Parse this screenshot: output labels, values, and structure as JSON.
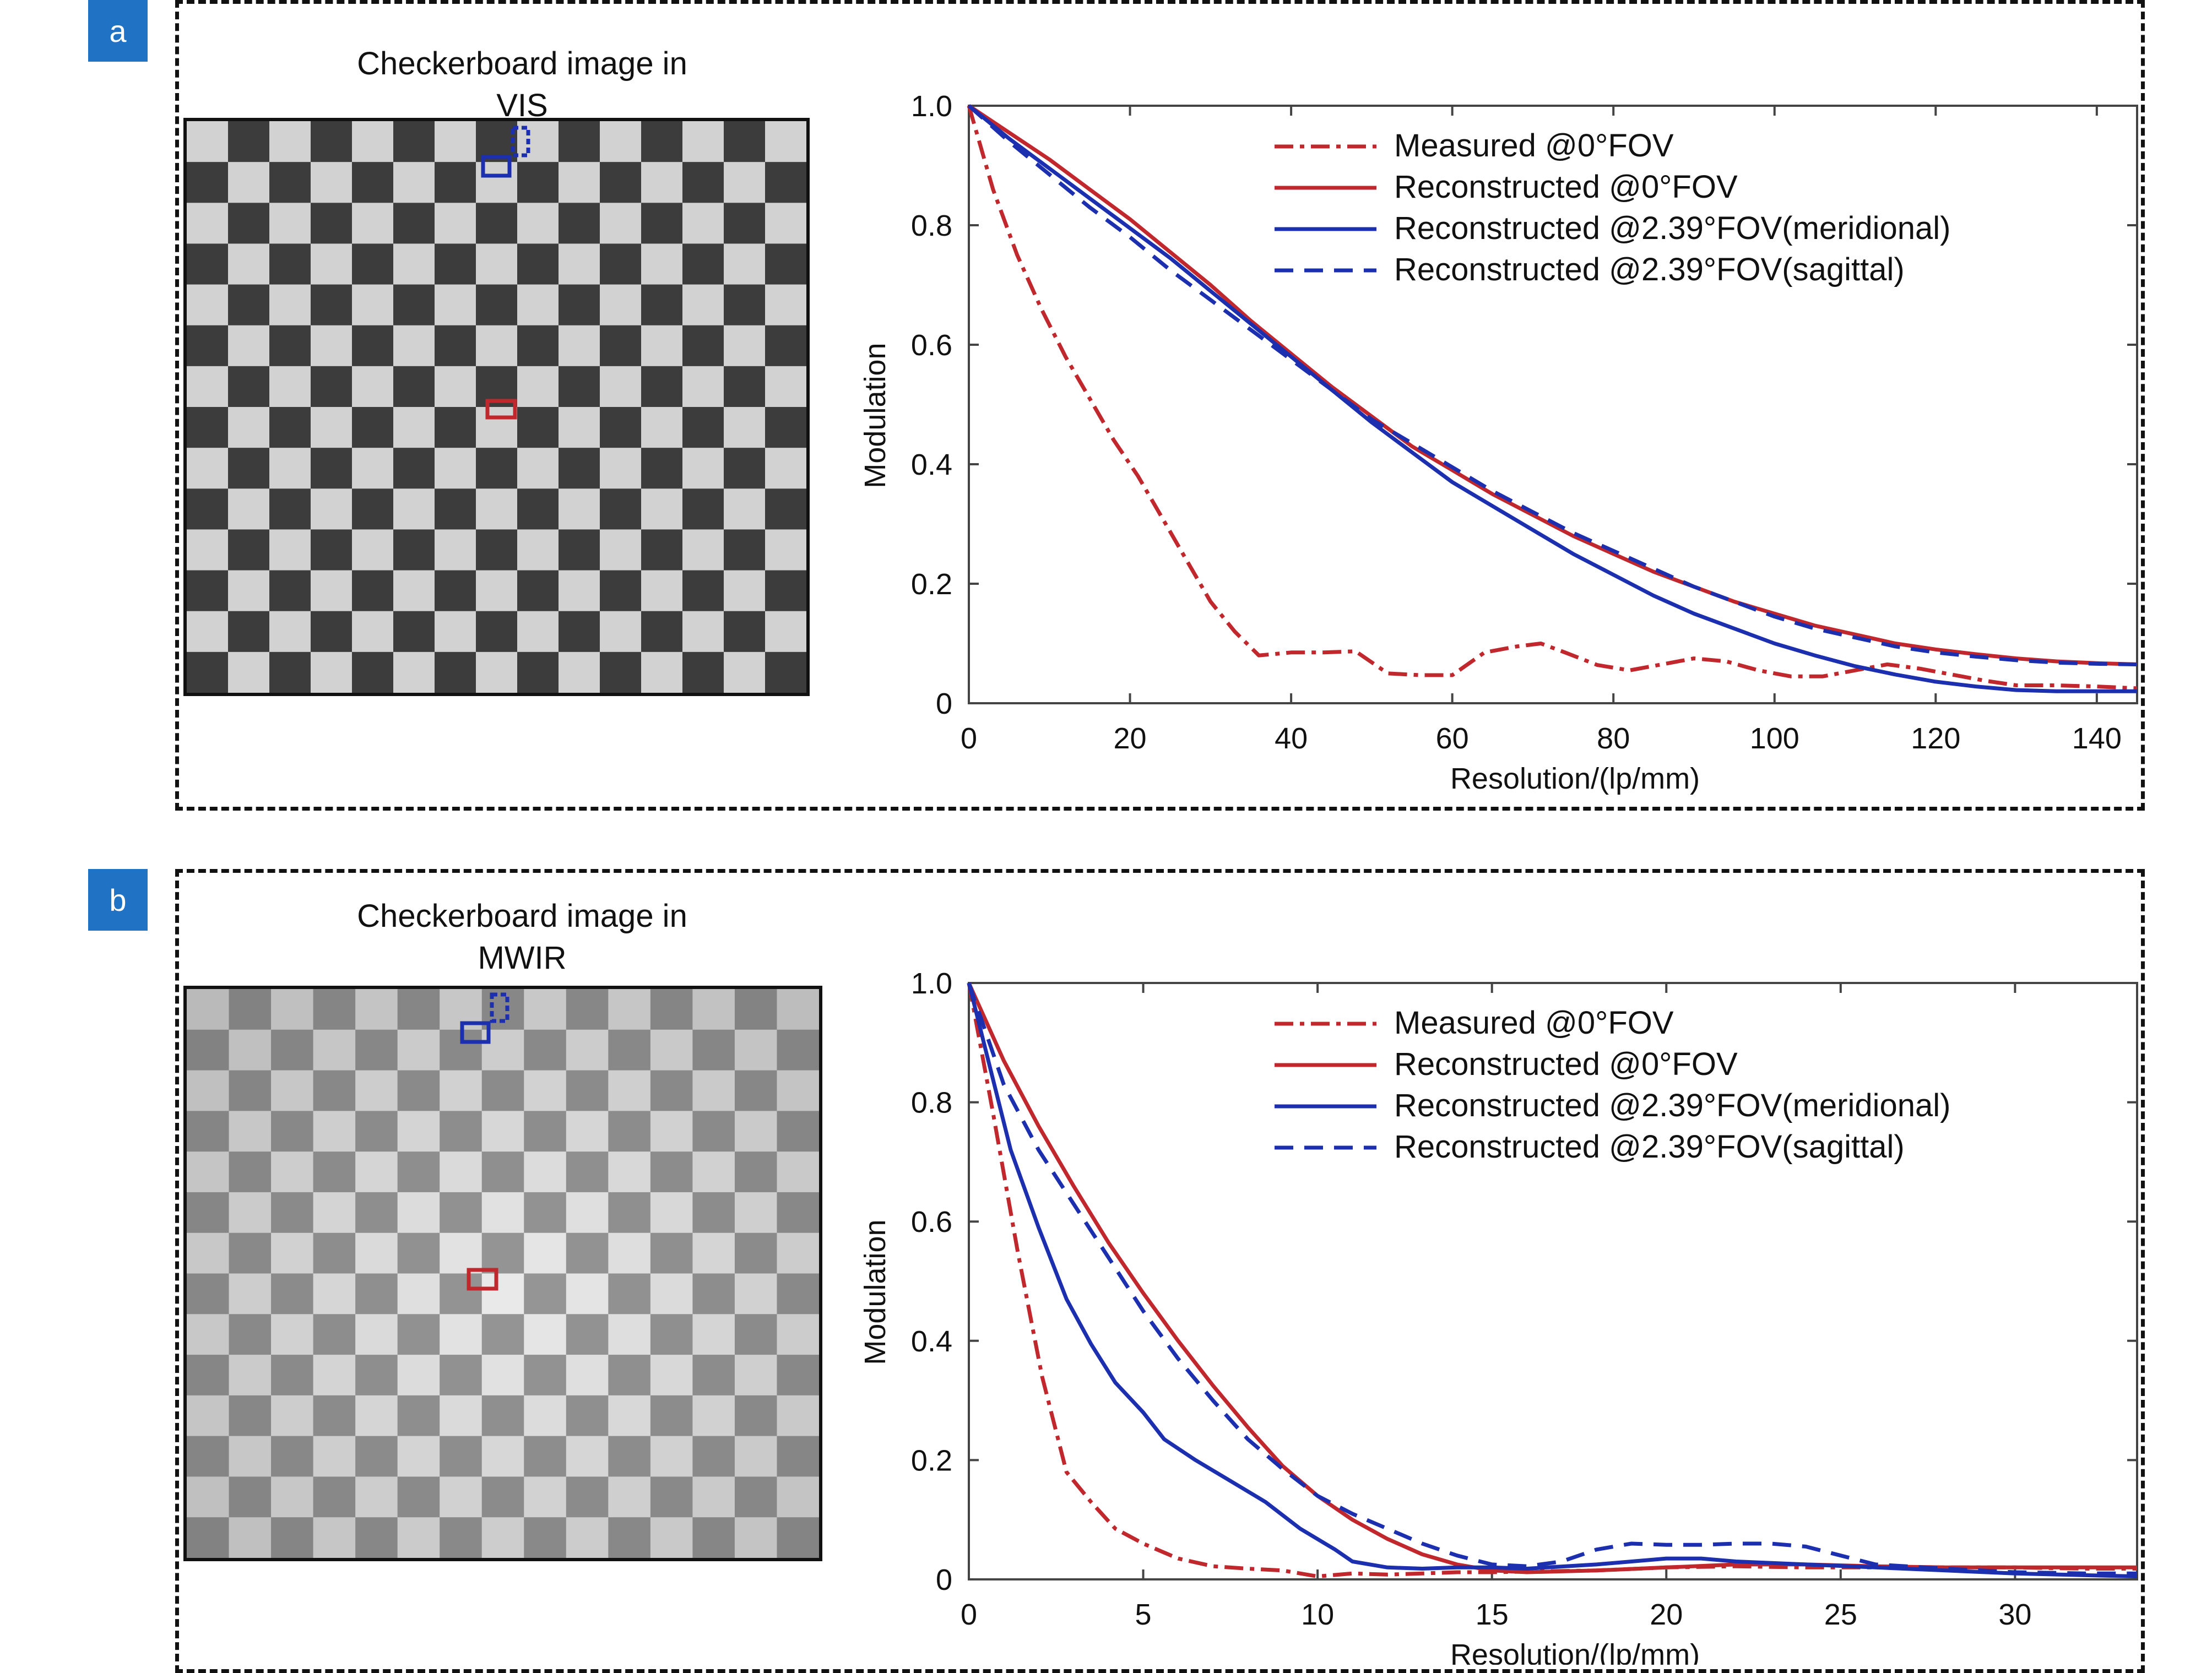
{
  "panels": [
    {
      "label": "a",
      "image_title_line1": "Checkerboard image in",
      "image_title_line2": "VIS",
      "image_style": "vis",
      "chart_data": {
        "type": "line",
        "xlabel": "Resolution/(lp/mm)",
        "ylabel": "Modulation",
        "xlim": [
          0,
          145
        ],
        "ylim": [
          0,
          1.0
        ],
        "xticks": [
          0,
          20,
          40,
          60,
          80,
          100,
          120,
          140
        ],
        "yticks": [
          0,
          0.2,
          0.4,
          0.6,
          0.8,
          1.0
        ],
        "ytick_labels": [
          "0",
          "0.2",
          "0.4",
          "0.6",
          "0.8",
          "1.0"
        ],
        "legend_position": "top-right",
        "series": [
          {
            "name": "Measured @0°FOV",
            "color": "#c0282d",
            "dash": "dashdot",
            "x": [
              0,
              3,
              6,
              9,
              12,
              15,
              18,
              21,
              24,
              27,
              30,
              33,
              36,
              40,
              44,
              48,
              52,
              56,
              60,
              64,
              68,
              71,
              74,
              78,
              82,
              86,
              90,
              94,
              98,
              102,
              106,
              110,
              114,
              118,
              122,
              126,
              130,
              135,
              140,
              145
            ],
            "y": [
              1.0,
              0.86,
              0.75,
              0.66,
              0.58,
              0.51,
              0.44,
              0.38,
              0.31,
              0.24,
              0.17,
              0.12,
              0.08,
              0.085,
              0.085,
              0.087,
              0.05,
              0.047,
              0.047,
              0.085,
              0.095,
              0.1,
              0.085,
              0.064,
              0.055,
              0.065,
              0.075,
              0.07,
              0.055,
              0.045,
              0.045,
              0.055,
              0.065,
              0.058,
              0.048,
              0.038,
              0.03,
              0.03,
              0.028,
              0.025
            ]
          },
          {
            "name": "Reconstructed @0°FOV",
            "color": "#c0282d",
            "dash": "solid",
            "x": [
              0,
              5,
              10,
              15,
              20,
              25,
              30,
              35,
              40,
              45,
              50,
              55,
              60,
              65,
              70,
              75,
              80,
              85,
              90,
              95,
              100,
              105,
              110,
              115,
              120,
              125,
              130,
              135,
              140,
              145
            ],
            "y": [
              1.0,
              0.955,
              0.91,
              0.86,
              0.81,
              0.755,
              0.7,
              0.64,
              0.585,
              0.53,
              0.48,
              0.43,
              0.39,
              0.35,
              0.315,
              0.28,
              0.25,
              0.22,
              0.195,
              0.17,
              0.15,
              0.13,
              0.115,
              0.1,
              0.09,
              0.082,
              0.075,
              0.07,
              0.067,
              0.065
            ]
          },
          {
            "name": "Reconstructed @2.39°FOV(meridional)",
            "color": "#1c2fae",
            "dash": "solid",
            "x": [
              0,
              5,
              10,
              15,
              20,
              25,
              30,
              35,
              40,
              45,
              50,
              55,
              60,
              65,
              70,
              75,
              80,
              85,
              90,
              95,
              100,
              105,
              110,
              115,
              120,
              125,
              130,
              135,
              140,
              145
            ],
            "y": [
              1.0,
              0.945,
              0.895,
              0.845,
              0.795,
              0.745,
              0.69,
              0.635,
              0.58,
              0.525,
              0.47,
              0.42,
              0.37,
              0.33,
              0.29,
              0.25,
              0.215,
              0.18,
              0.15,
              0.125,
              0.1,
              0.08,
              0.062,
              0.048,
              0.036,
              0.028,
              0.022,
              0.02,
              0.02,
              0.02
            ]
          },
          {
            "name": "Reconstructed @2.39°FOV(sagittal)",
            "color": "#1c2fae",
            "dash": "dashed",
            "x": [
              0,
              5,
              10,
              15,
              20,
              25,
              30,
              35,
              40,
              45,
              50,
              55,
              60,
              65,
              70,
              75,
              80,
              85,
              90,
              95,
              100,
              105,
              110,
              115,
              120,
              125,
              130,
              135,
              140,
              145
            ],
            "y": [
              1.0,
              0.94,
              0.885,
              0.83,
              0.78,
              0.725,
              0.675,
              0.625,
              0.575,
              0.525,
              0.475,
              0.435,
              0.395,
              0.355,
              0.32,
              0.285,
              0.255,
              0.225,
              0.195,
              0.17,
              0.145,
              0.125,
              0.11,
              0.095,
              0.085,
              0.078,
              0.072,
              0.068,
              0.066,
              0.065
            ]
          }
        ]
      }
    },
    {
      "label": "b",
      "image_title_line1": "Checkerboard image in",
      "image_title_line2": "MWIR",
      "image_style": "mwir",
      "chart_data": {
        "type": "line",
        "xlabel": "Resolution/(lp/mm)",
        "ylabel": "Modulation",
        "xlim": [
          0,
          33.5
        ],
        "ylim": [
          0,
          1.0
        ],
        "xticks": [
          0,
          5,
          10,
          15,
          20,
          25,
          30
        ],
        "yticks": [
          0,
          0.2,
          0.4,
          0.6,
          0.8,
          1.0
        ],
        "ytick_labels": [
          "0",
          "0.2",
          "0.4",
          "0.6",
          "0.8",
          "1.0"
        ],
        "legend_position": "top-right",
        "series": [
          {
            "name": "Measured @0°FOV",
            "color": "#c0282d",
            "dash": "dashdot",
            "x": [
              0,
              0.7,
              1.4,
              2.1,
              2.8,
              3.5,
              4.2,
              5,
              6,
              7,
              8,
              9,
              10,
              11,
              12,
              13,
              14,
              15,
              16,
              18,
              20,
              22,
              24,
              26,
              28,
              30,
              32,
              33.5
            ],
            "y": [
              1.0,
              0.78,
              0.55,
              0.34,
              0.18,
              0.13,
              0.085,
              0.06,
              0.035,
              0.022,
              0.018,
              0.015,
              0.005,
              0.01,
              0.008,
              0.01,
              0.012,
              0.012,
              0.013,
              0.015,
              0.02,
              0.022,
              0.02,
              0.02,
              0.02,
              0.02,
              0.018,
              0.018
            ]
          },
          {
            "name": "Reconstructed @0°FOV",
            "color": "#c0282d",
            "dash": "solid",
            "x": [
              0,
              1,
              2,
              3,
              4,
              5,
              6,
              7,
              8,
              9,
              10,
              11,
              12,
              13,
              14,
              15,
              16,
              18,
              20,
              22,
              24,
              26,
              28,
              30,
              32,
              33.5
            ],
            "y": [
              1.0,
              0.87,
              0.76,
              0.66,
              0.565,
              0.48,
              0.4,
              0.325,
              0.255,
              0.19,
              0.14,
              0.1,
              0.068,
              0.042,
              0.025,
              0.015,
              0.012,
              0.015,
              0.02,
              0.025,
              0.025,
              0.022,
              0.02,
              0.02,
              0.02,
              0.02
            ]
          },
          {
            "name": "Reconstructed @2.39°FOV(meridional)",
            "color": "#1c2fae",
            "dash": "solid",
            "x": [
              0,
              0.6,
              1.2,
              2,
              2.8,
              3.5,
              4.2,
              5,
              5.6,
              6.5,
              7.5,
              8.5,
              9.5,
              10.5,
              11,
              12,
              13,
              14,
              15,
              16,
              18,
              20,
              21,
              22,
              24,
              26,
              28,
              30,
              32,
              33.5
            ],
            "y": [
              1.0,
              0.86,
              0.72,
              0.59,
              0.47,
              0.395,
              0.33,
              0.28,
              0.235,
              0.2,
              0.165,
              0.13,
              0.085,
              0.05,
              0.03,
              0.02,
              0.018,
              0.02,
              0.02,
              0.018,
              0.025,
              0.035,
              0.035,
              0.03,
              0.025,
              0.02,
              0.015,
              0.01,
              0.007,
              0.005
            ]
          },
          {
            "name": "Reconstructed @2.39°FOV(sagittal)",
            "color": "#1c2fae",
            "dash": "dashed",
            "x": [
              0,
              1,
              2,
              3,
              4,
              5,
              6,
              7,
              8,
              9,
              10,
              11,
              12,
              13,
              14,
              15,
              16,
              17,
              18,
              19,
              20,
              21,
              22,
              23,
              24,
              25,
              26,
              28,
              30,
              32,
              33.5
            ],
            "y": [
              1.0,
              0.83,
              0.72,
              0.63,
              0.54,
              0.45,
              0.37,
              0.3,
              0.235,
              0.185,
              0.14,
              0.11,
              0.085,
              0.06,
              0.04,
              0.025,
              0.022,
              0.03,
              0.05,
              0.06,
              0.058,
              0.058,
              0.06,
              0.06,
              0.055,
              0.04,
              0.025,
              0.018,
              0.012,
              0.01,
              0.01
            ]
          }
        ]
      }
    }
  ]
}
